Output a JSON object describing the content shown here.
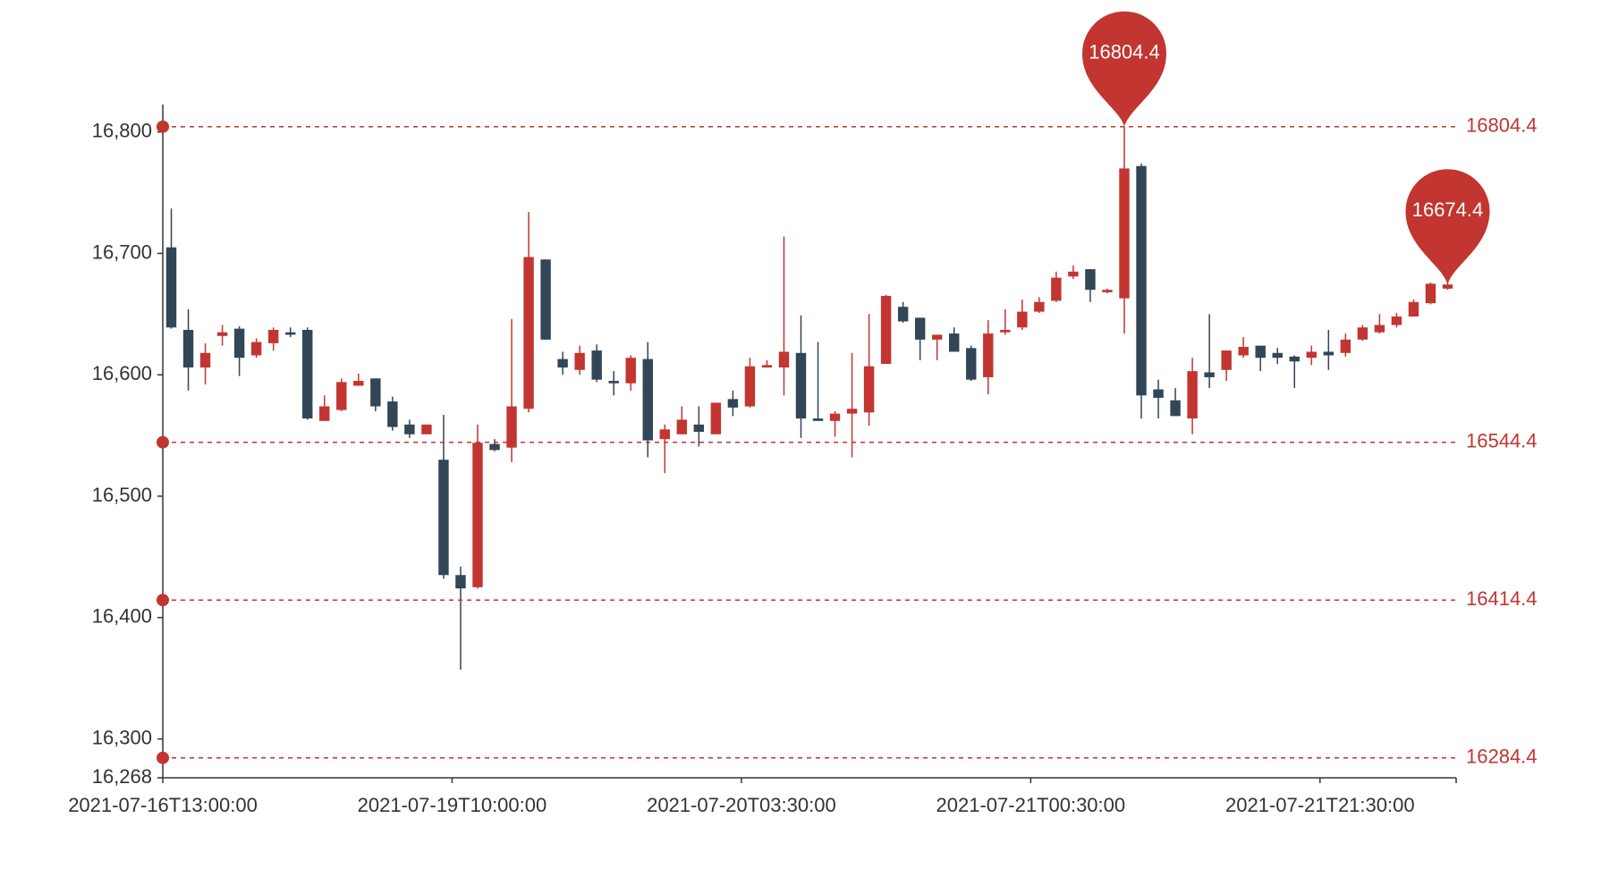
{
  "chart_data": {
    "type": "candlestick",
    "categories": [
      "2021-07-16T13:00:00",
      null,
      null,
      null,
      null,
      null,
      null,
      null,
      null,
      null,
      null,
      null,
      null,
      null,
      null,
      null,
      null,
      "2021-07-19T10:00:00",
      null,
      null,
      null,
      null,
      null,
      null,
      null,
      null,
      null,
      null,
      null,
      null,
      null,
      null,
      null,
      null,
      "2021-07-20T03:30:00",
      null,
      null,
      null,
      null,
      null,
      null,
      null,
      null,
      null,
      null,
      null,
      null,
      null,
      null,
      null,
      null,
      "2021-07-21T00:30:00",
      null,
      null,
      null,
      null,
      null,
      null,
      null,
      null,
      null,
      null,
      null,
      null,
      null,
      null,
      null,
      null,
      "2021-07-21T21:30:00",
      null,
      null,
      null,
      null,
      null,
      null,
      null
    ],
    "open": [
      16705,
      16637,
      16606,
      16632,
      16638,
      16616,
      16626,
      16635,
      16637,
      16562,
      16571,
      16591,
      16597,
      16578,
      16559,
      16551,
      16530,
      16435,
      16425,
      16543,
      16540,
      16572,
      16695,
      16613,
      16604,
      16620,
      16595,
      16593,
      16613,
      16547,
      16551,
      16559,
      16551,
      16580,
      16574,
      16606,
      16606,
      16618,
      16564,
      16562,
      16568,
      16569,
      16609,
      16656,
      16647,
      16629,
      16634,
      16622,
      16598,
      16635,
      16639,
      16652,
      16661,
      16681,
      16687,
      16668,
      16663,
      16772,
      16588,
      16579,
      16564,
      16602,
      16604,
      16616,
      16624,
      16618,
      16615,
      16614,
      16619,
      16618,
      16629,
      16635,
      16641,
      16648,
      16659,
      16671
    ],
    "high": [
      16737,
      16654,
      16626,
      16641,
      16640,
      16630,
      16639,
      16639,
      16639,
      16583,
      16597,
      16601,
      16597,
      16582,
      16563,
      16559,
      16567,
      16442,
      16559,
      16547,
      16646,
      16734,
      16695,
      16619,
      16624,
      16625,
      16603,
      16616,
      16627,
      16559,
      16574,
      16574,
      16577,
      16587,
      16614,
      16612,
      16714,
      16649,
      16627,
      16570,
      16618,
      16650,
      16666,
      16660,
      16647,
      16633,
      16639,
      16624,
      16645,
      16654,
      16662,
      16664,
      16685,
      16690,
      16687,
      16671,
      16804.4,
      16774,
      16596,
      16589,
      16614,
      16650,
      16620,
      16631,
      16624,
      16622,
      16616,
      16624,
      16637,
      16634,
      16641,
      16650,
      16651,
      16662,
      16676,
      16676
    ],
    "low": [
      16638,
      16587,
      16592,
      16624,
      16599,
      16614,
      16620,
      16631,
      16563,
      16562,
      16570,
      16591,
      16570,
      16554,
      16548,
      16551,
      16432,
      16357,
      16424,
      16537,
      16528,
      16569,
      16629,
      16600,
      16600,
      16594,
      16583,
      16587,
      16532,
      16519,
      16551,
      16541,
      16551,
      16566,
      16573,
      16606,
      16583,
      16548,
      16562,
      16549,
      16532,
      16558,
      16609,
      16643,
      16612,
      16612,
      16619,
      16595,
      16584,
      16633,
      16637,
      16651,
      16660,
      16679,
      16660,
      16667,
      16634,
      16564,
      16564,
      16566,
      16551,
      16589,
      16595,
      16614,
      16603,
      16609,
      16589,
      16608,
      16604,
      16615,
      16628,
      16634,
      16639,
      16648,
      16658,
      16670
    ],
    "close": [
      16639,
      16606,
      16618,
      16635,
      16614,
      16627,
      16637,
      16633,
      16564,
      16574,
      16594,
      16595,
      16574,
      16557,
      16551,
      16559,
      16435,
      16424,
      16544,
      16538,
      16574,
      16697,
      16629,
      16606,
      16618,
      16596,
      16593,
      16614,
      16546,
      16555,
      16563,
      16553,
      16577,
      16573,
      16607,
      16608,
      16619,
      16564,
      16562,
      16568,
      16572,
      16607,
      16665,
      16644,
      16629,
      16633,
      16619,
      16596,
      16634,
      16637,
      16652,
      16660,
      16680,
      16685,
      16670,
      16670,
      16770,
      16583,
      16581,
      16566,
      16603,
      16598,
      16620,
      16623,
      16614,
      16614,
      16611,
      16619,
      16616,
      16629,
      16639,
      16641,
      16648,
      16660,
      16675,
      16674.4
    ],
    "up_color": "#c23531",
    "down_color": "#314656",
    "ylim": [
      16268,
      16822.6
    ],
    "yticks": [
      {
        "value": 16268,
        "label": "16,268"
      },
      {
        "value": 16300,
        "label": "16,300"
      },
      {
        "value": 16400,
        "label": "16,400"
      },
      {
        "value": 16500,
        "label": "16,500"
      },
      {
        "value": 16600,
        "label": "16,600"
      },
      {
        "value": 16700,
        "label": "16,700"
      },
      {
        "value": 16800,
        "label": "16,800"
      }
    ],
    "mark_lines": [
      16804.4,
      16544.4,
      16414.4,
      16284.4
    ],
    "mark_points": [
      {
        "index": 56,
        "value": 16804.4
      },
      {
        "index": 75,
        "value": 16674.4
      }
    ],
    "mark_color": "#c23531"
  }
}
